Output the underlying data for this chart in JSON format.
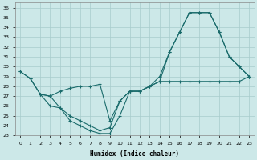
{
  "xlabel": "Humidex (Indice chaleur)",
  "xlim": [
    -0.5,
    23.5
  ],
  "ylim": [
    23,
    36.5
  ],
  "yticks": [
    23,
    24,
    25,
    26,
    27,
    28,
    29,
    30,
    31,
    32,
    33,
    34,
    35,
    36
  ],
  "xticks": [
    0,
    1,
    2,
    3,
    4,
    5,
    6,
    7,
    8,
    9,
    10,
    11,
    12,
    13,
    14,
    15,
    16,
    17,
    18,
    19,
    20,
    21,
    22,
    23
  ],
  "bg_color": "#cce8e8",
  "grid_color": "#a8cccc",
  "line_color": "#1a6b6b",
  "line1_x": [
    0,
    1,
    2,
    3,
    4,
    5,
    6,
    7,
    8,
    9,
    10,
    11,
    12,
    13,
    14,
    15,
    16,
    17,
    18,
    19,
    20,
    21,
    22,
    23
  ],
  "line1_y": [
    29.5,
    28.8,
    27.2,
    27.0,
    25.8,
    24.5,
    24.0,
    23.5,
    23.2,
    23.2,
    25.0,
    27.5,
    27.5,
    28.0,
    28.5,
    28.5,
    28.5,
    28.5,
    28.5,
    28.5,
    28.5,
    28.5,
    28.5,
    29.0
  ],
  "line2_x": [
    0,
    1,
    2,
    3,
    4,
    5,
    6,
    7,
    8,
    9,
    10,
    11,
    12,
    13,
    14,
    15,
    16,
    17,
    18,
    19,
    20,
    21,
    22,
    23
  ],
  "line2_y": [
    29.5,
    28.8,
    27.2,
    27.0,
    27.5,
    27.8,
    28.0,
    28.0,
    28.2,
    24.5,
    26.5,
    27.5,
    27.5,
    28.0,
    28.5,
    31.5,
    33.5,
    35.5,
    35.5,
    35.5,
    33.5,
    31.0,
    30.0,
    29.0
  ],
  "line3_x": [
    2,
    3,
    4,
    5,
    6,
    7,
    8,
    9,
    10,
    11,
    12,
    13,
    14,
    15,
    16,
    17,
    18,
    19,
    20,
    21,
    22,
    23
  ],
  "line3_y": [
    27.2,
    26.0,
    25.8,
    25.0,
    24.5,
    24.0,
    23.5,
    23.8,
    26.5,
    27.5,
    27.5,
    28.0,
    29.0,
    31.5,
    33.5,
    35.5,
    35.5,
    35.5,
    33.5,
    31.0,
    30.0,
    29.0
  ]
}
